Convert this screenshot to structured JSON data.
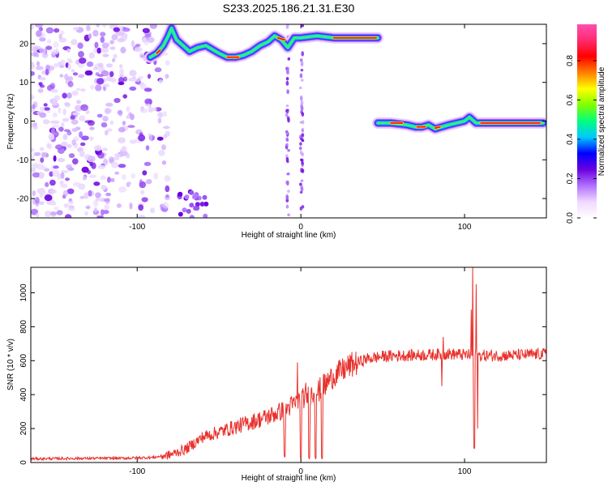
{
  "title": "S233.2025.186.21.31.E30",
  "chart_data": [
    {
      "type": "heatmap",
      "xlabel": "Height of straight line (km)",
      "ylabel": "Frequency (Hz)",
      "xlim": [
        -165,
        150
      ],
      "ylim": [
        -25,
        25
      ],
      "xticks": [
        -100,
        0,
        100
      ],
      "yticks": [
        -20,
        -10,
        0,
        10,
        20
      ],
      "colorbar": {
        "label": "Normalized spectral amplitude",
        "range": [
          0,
          1
        ],
        "ticks": [
          "0.0",
          "0.2",
          "0.4",
          "0.6",
          "0.8"
        ],
        "colors": [
          "#ffffff",
          "#f0d8ff",
          "#b070ff",
          "#6a00e0",
          "#0000ff",
          "#00c8ff",
          "#00ff7f",
          "#80ff00",
          "#ffff00",
          "#ff8000",
          "#ff0000",
          "#ff2a6e",
          "#ff4fb0"
        ]
      },
      "signal_traces": [
        {
          "name": "",
          "points": [
            [
              -92,
              16.5
            ],
            [
              -88,
              17.5
            ],
            [
              -84,
              19.5
            ],
            [
              -81,
              22
            ],
            [
              -79,
              24
            ],
            [
              -76,
              21
            ],
            [
              -72,
              19.5
            ],
            [
              -68,
              18
            ],
            [
              -63,
              19
            ],
            [
              -58,
              19.5
            ],
            [
              -54,
              18.5
            ],
            [
              -50,
              17.5
            ],
            [
              -45,
              16.5
            ],
            [
              -40,
              16.5
            ],
            [
              -35,
              17
            ],
            [
              -30,
              18
            ],
            [
              -25,
              19.5
            ],
            [
              -20,
              20.5
            ],
            [
              -16,
              22
            ],
            [
              -12,
              21
            ],
            [
              -8,
              19
            ],
            [
              -4,
              21.5
            ],
            [
              0,
              21.5
            ],
            [
              10,
              22
            ],
            [
              20,
              21.5
            ],
            [
              30,
              21.5
            ],
            [
              47,
              21.5
            ]
          ]
        },
        {
          "name": "",
          "points": [
            [
              47,
              -0.5
            ],
            [
              55,
              -0.5
            ],
            [
              65,
              -1
            ],
            [
              70,
              -1.5
            ],
            [
              74,
              -1.5
            ],
            [
              78,
              -1
            ],
            [
              82,
              -2
            ],
            [
              86,
              -1.5
            ],
            [
              90,
              -1
            ],
            [
              95,
              -0.5
            ],
            [
              100,
              0
            ],
            [
              103,
              1
            ],
            [
              107,
              -0.5
            ],
            [
              115,
              -0.5
            ],
            [
              130,
              -0.5
            ],
            [
              148,
              -0.5
            ]
          ]
        }
      ]
    },
    {
      "type": "line",
      "xlabel": "Height of straight line (km)",
      "ylabel": "SNR (10 * v/v)",
      "xlim": [
        -165,
        150
      ],
      "ylim": [
        0,
        1150
      ],
      "xticks": [
        -100,
        0,
        100
      ],
      "yticks": [
        0,
        200,
        400,
        600,
        800,
        1000
      ],
      "color": "#e8312c",
      "baseline_profile": [
        [
          -165,
          22
        ],
        [
          -140,
          24
        ],
        [
          -110,
          25
        ],
        [
          -90,
          30
        ],
        [
          -80,
          45
        ],
        [
          -70,
          80
        ],
        [
          -60,
          150
        ],
        [
          -50,
          180
        ],
        [
          -40,
          210
        ],
        [
          -30,
          240
        ],
        [
          -20,
          270
        ],
        [
          -10,
          310
        ],
        [
          0,
          370
        ],
        [
          10,
          420
        ],
        [
          20,
          510
        ],
        [
          30,
          570
        ],
        [
          40,
          610
        ],
        [
          50,
          625
        ],
        [
          60,
          630
        ],
        [
          70,
          632
        ],
        [
          80,
          635
        ],
        [
          90,
          640
        ],
        [
          100,
          635
        ],
        [
          110,
          630
        ],
        [
          120,
          630
        ],
        [
          130,
          632
        ],
        [
          140,
          635
        ],
        [
          150,
          640
        ]
      ],
      "features": [
        {
          "x": -10,
          "y": 30
        },
        {
          "x": -2,
          "y": 590
        },
        {
          "x": 0,
          "y": 20
        },
        {
          "x": 3,
          "y": 470
        },
        {
          "x": 5,
          "y": 20
        },
        {
          "x": 7,
          "y": 380
        },
        {
          "x": 9,
          "y": 20
        },
        {
          "x": 11,
          "y": 360
        },
        {
          "x": 13,
          "y": 20
        },
        {
          "x": 15,
          "y": 400
        },
        {
          "x": 86,
          "y": 450
        },
        {
          "x": 87,
          "y": 740
        },
        {
          "x": 104,
          "y": 900
        },
        {
          "x": 105,
          "y": 1150
        },
        {
          "x": 106,
          "y": 80
        },
        {
          "x": 107,
          "y": 1050
        },
        {
          "x": 108,
          "y": 200
        }
      ]
    }
  ]
}
